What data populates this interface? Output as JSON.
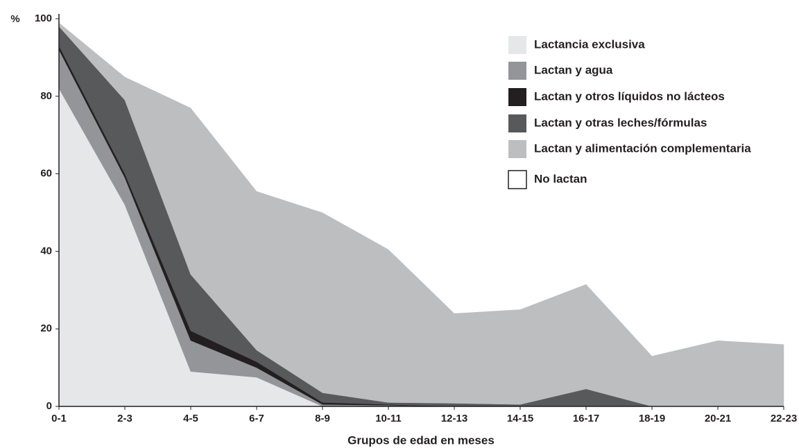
{
  "chart_data": {
    "type": "stacked_area",
    "y_label": "%",
    "x_label": "Grupos de edad en meses",
    "categories": [
      "0-1",
      "2-3",
      "4-5",
      "6-7",
      "8-9",
      "10-11",
      "12-13",
      "14-15",
      "16-17",
      "18-19",
      "20-21",
      "22-23"
    ],
    "series": [
      {
        "name": "Lactancia exclusiva",
        "color": "#e6e7e8",
        "values": [
          82,
          52,
          9,
          7.5,
          0,
          0,
          0,
          0,
          0,
          0,
          0,
          0
        ]
      },
      {
        "name": "Lactan y agua",
        "color": "#939598",
        "values": [
          10,
          7,
          8,
          2.5,
          0.5,
          0.3,
          0,
          0,
          0,
          0,
          0,
          0
        ]
      },
      {
        "name": "Lactan y otros líquidos no lácteos",
        "color": "#231f20",
        "values": [
          1,
          1,
          2.5,
          1.5,
          0.5,
          0.2,
          0,
          0,
          0,
          0,
          0,
          0
        ]
      },
      {
        "name": "Lactan y otras leches/fórmulas",
        "color": "#58595b",
        "values": [
          5,
          19,
          14.5,
          3,
          2.5,
          0.5,
          0.8,
          0.5,
          4.5,
          0,
          0,
          0
        ]
      },
      {
        "name": "Lactan y alimentación complementaria",
        "color": "#bcbec0",
        "values": [
          1,
          6,
          43,
          41,
          46.5,
          39.5,
          23.2,
          24.5,
          27,
          13,
          17,
          16
        ]
      },
      {
        "name": "No lactan",
        "color": "#ffffff",
        "values": [
          1,
          15,
          23,
          44.5,
          50,
          59.5,
          76,
          75,
          68.5,
          87,
          83,
          84
        ]
      }
    ],
    "ylim": [
      0,
      100
    ],
    "yticks": [
      0,
      20,
      40,
      60,
      80,
      100
    ],
    "grid": false,
    "legend": "upper right"
  }
}
